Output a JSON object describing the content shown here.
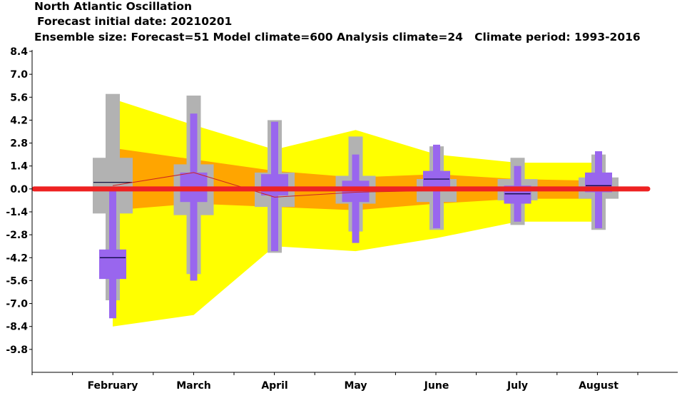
{
  "header": {
    "line1": "North Atlantic Oscillation",
    "line2": "Forecast initial date: 20210201",
    "line3": "Ensemble size: Forecast=51 Model climate=600 Analysis climate=24   Climate period: 1993-2016"
  },
  "chart_data": {
    "type": "box",
    "title": "North Atlantic Oscillation",
    "xlabel": "",
    "ylabel": "",
    "categories": [
      "February",
      "March",
      "April",
      "May",
      "June",
      "July",
      "August"
    ],
    "ylim": [
      -11.2,
      8.4
    ],
    "yticks": [
      8.4,
      7.0,
      5.6,
      4.2,
      2.8,
      1.4,
      0.0,
      -1.4,
      -2.8,
      -4.2,
      -5.6,
      -7.0,
      -8.4,
      -9.8
    ],
    "ytick_labels": [
      "8.4",
      "7.0",
      "5.6",
      "4.2",
      "2.8",
      "1.4",
      "0.0",
      "-1.4",
      "-2.8",
      "-4.2",
      "-5.6",
      "-7.0",
      "-8.4",
      "-9.8"
    ],
    "model_climate_outer_band": {
      "upper": [
        5.5,
        3.9,
        2.4,
        3.6,
        2.1,
        1.6,
        1.6
      ],
      "lower": [
        -8.4,
        -7.7,
        -3.5,
        -3.8,
        -3.0,
        -2.0,
        -2.0
      ]
    },
    "model_climate_inner_band": {
      "upper": [
        2.5,
        1.8,
        1.1,
        0.7,
        0.9,
        0.6,
        0.5
      ],
      "lower": [
        -1.3,
        -0.9,
        -1.1,
        -1.3,
        -0.9,
        -0.6,
        -0.6
      ]
    },
    "analysis_climate_boxes": [
      {
        "whisker_low": -6.8,
        "box_low": -1.5,
        "box_high": 1.9,
        "whisker_high": 5.8,
        "median": 0.4
      },
      {
        "whisker_low": -5.2,
        "box_low": -1.6,
        "box_high": 1.5,
        "whisker_high": 5.7,
        "median": 0.0
      },
      {
        "whisker_low": -3.9,
        "box_low": -1.1,
        "box_high": 1.0,
        "whisker_high": 4.2,
        "median": 0.0
      },
      {
        "whisker_low": -2.6,
        "box_low": -0.9,
        "box_high": 0.8,
        "whisker_high": 3.2,
        "median": 0.0
      },
      {
        "whisker_low": -2.5,
        "box_low": -0.8,
        "box_high": 0.6,
        "whisker_high": 2.6,
        "median": 0.0
      },
      {
        "whisker_low": -2.2,
        "box_low": -0.7,
        "box_high": 0.6,
        "whisker_high": 1.9,
        "median": 0.0
      },
      {
        "whisker_low": -2.5,
        "box_low": -0.6,
        "box_high": 0.7,
        "whisker_high": 2.1,
        "median": 0.0
      }
    ],
    "forecast_boxes": [
      {
        "whisker_low": -7.9,
        "box_low": -5.5,
        "box_high": -3.7,
        "whisker_high": 0.0,
        "median": -4.2
      },
      {
        "whisker_low": -5.6,
        "box_low": -0.8,
        "box_high": 1.0,
        "whisker_high": 4.6,
        "median": -0.1
      },
      {
        "whisker_low": -3.8,
        "box_low": -0.4,
        "box_high": 0.9,
        "whisker_high": 4.1,
        "median": -0.1
      },
      {
        "whisker_low": -3.3,
        "box_low": -0.8,
        "box_high": 0.5,
        "whisker_high": 2.1,
        "median": 0.0
      },
      {
        "whisker_low": -2.4,
        "box_low": -0.1,
        "box_high": 1.1,
        "whisker_high": 2.7,
        "median": 0.6
      },
      {
        "whisker_low": -2.0,
        "box_low": -0.9,
        "box_high": 0.2,
        "whisker_high": 1.4,
        "median": -0.3
      },
      {
        "whisker_low": -2.4,
        "box_low": -0.2,
        "box_high": 1.0,
        "whisker_high": 2.3,
        "median": 0.2
      }
    ],
    "median_line": [
      0.2,
      1.0,
      -0.5,
      -0.2,
      -0.1,
      -0.1,
      0.1
    ],
    "zero_line": 0.0,
    "colors": {
      "outer_band": "#ffff00",
      "inner_band": "#ffa500",
      "analysis_box": "#b2b2b2",
      "forecast_box": "#9966ee",
      "zero_line": "#ee2222",
      "median_line": "#cc2222",
      "median_tick": "#000033"
    }
  }
}
